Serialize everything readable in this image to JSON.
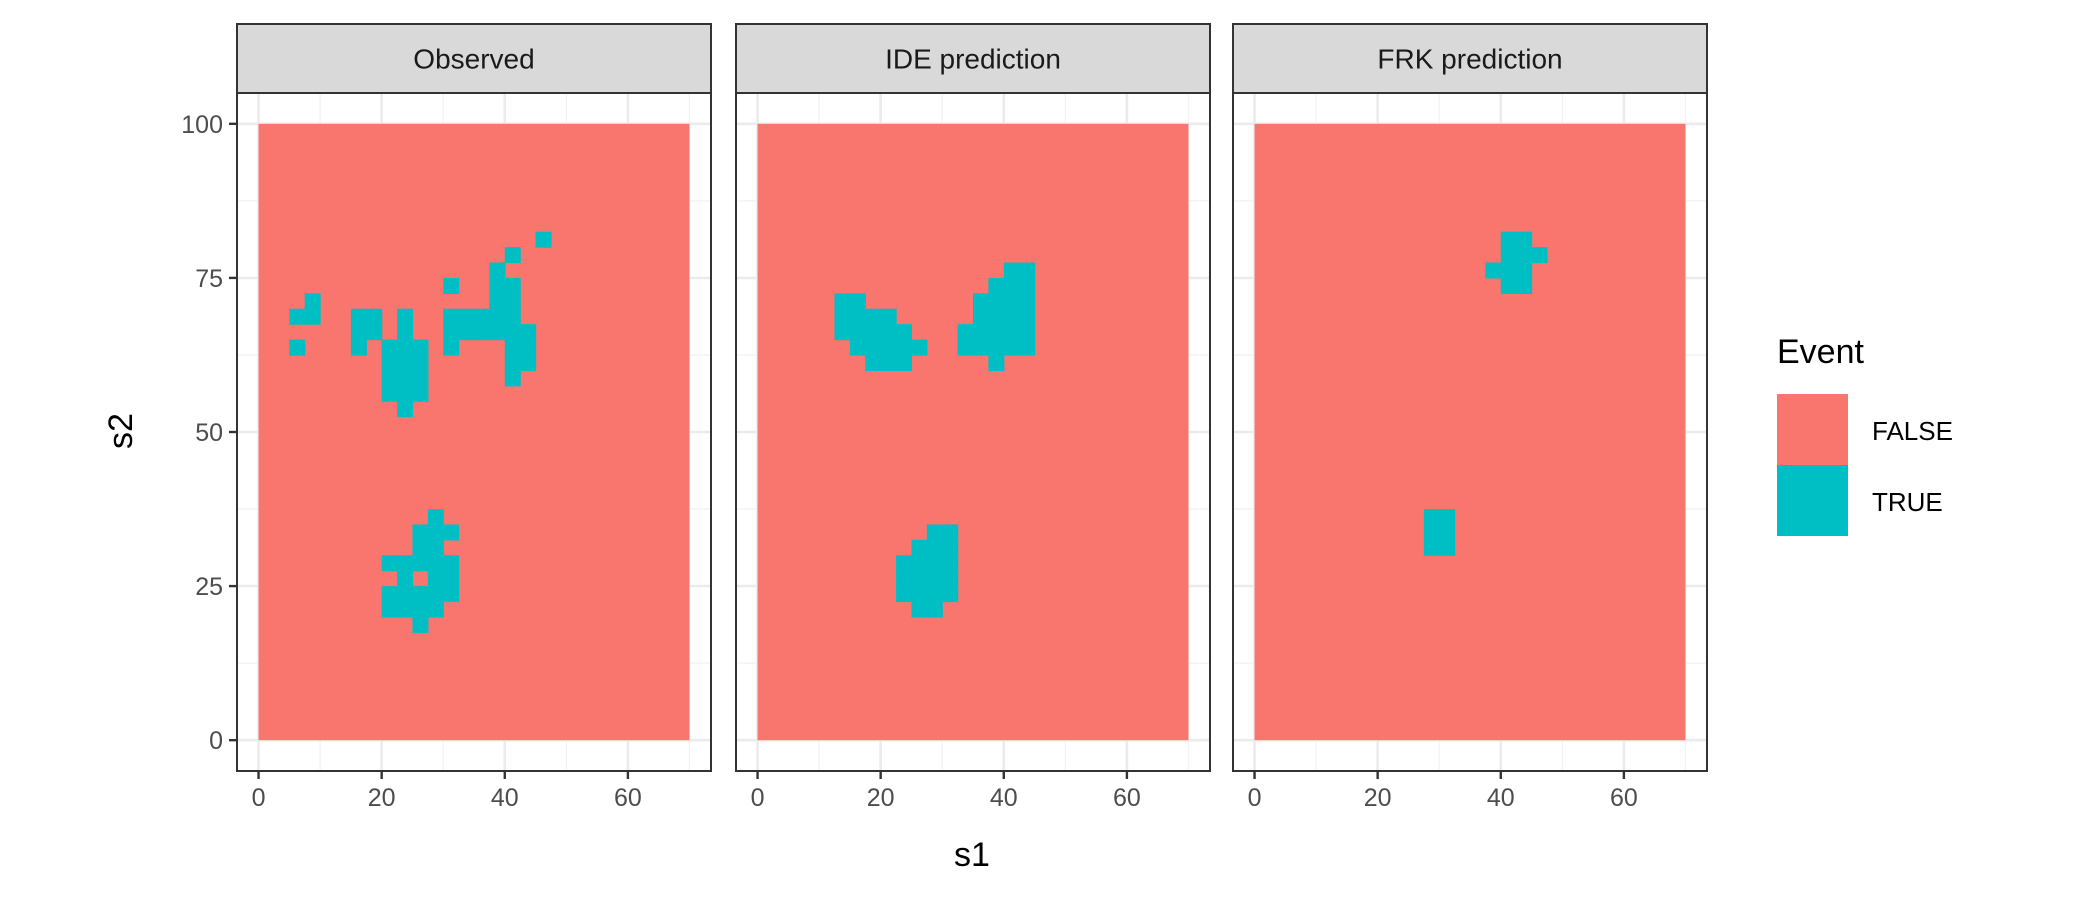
{
  "chart_data": {
    "type": "heatmap",
    "xlabel": "s1",
    "ylabel": "s2",
    "xlim": [
      0,
      70
    ],
    "ylim": [
      0,
      100
    ],
    "cell_size": 2.5,
    "xticks": [
      "0",
      "20",
      "40",
      "60"
    ],
    "yticks": [
      "0",
      "25",
      "50",
      "75",
      "100"
    ],
    "grid": true,
    "legend": {
      "title": "Event",
      "position": "right",
      "entries": [
        {
          "label": "FALSE",
          "color": "#F8766D"
        },
        {
          "label": "TRUE",
          "color": "#00BFC4"
        }
      ]
    },
    "default_value": "FALSE",
    "panels": [
      {
        "title": "Observed",
        "true_cells": [
          {
            "s2": 81.25,
            "s1": [
              46.25
            ]
          },
          {
            "s2": 78.75,
            "s1": [
              41.25
            ]
          },
          {
            "s2": 76.25,
            "s1": [
              38.75
            ]
          },
          {
            "s2": 73.75,
            "s1": [
              31.25,
              38.75,
              41.25
            ]
          },
          {
            "s2": 71.25,
            "s1": [
              8.75,
              38.75,
              41.25
            ]
          },
          {
            "s2": 68.75,
            "s1": [
              6.25,
              8.75,
              16.25,
              18.75,
              23.75,
              31.25,
              33.75,
              36.25,
              38.75,
              41.25
            ]
          },
          {
            "s2": 66.25,
            "s1": [
              16.25,
              18.75,
              23.75,
              31.25,
              33.75,
              36.25,
              38.75,
              41.25,
              43.75
            ]
          },
          {
            "s2": 63.75,
            "s1": [
              6.25,
              16.25,
              21.25,
              23.75,
              26.25,
              31.25,
              41.25,
              43.75
            ]
          },
          {
            "s2": 61.25,
            "s1": [
              21.25,
              23.75,
              26.25,
              41.25,
              43.75
            ]
          },
          {
            "s2": 58.75,
            "s1": [
              21.25,
              23.75,
              26.25,
              41.25
            ]
          },
          {
            "s2": 56.25,
            "s1": [
              21.25,
              23.75,
              26.25
            ]
          },
          {
            "s2": 53.75,
            "s1": [
              23.75
            ]
          },
          {
            "s2": 36.25,
            "s1": [
              28.75
            ]
          },
          {
            "s2": 33.75,
            "s1": [
              26.25,
              28.75,
              31.25
            ]
          },
          {
            "s2": 31.25,
            "s1": [
              26.25,
              28.75
            ]
          },
          {
            "s2": 28.75,
            "s1": [
              21.25,
              23.75,
              26.25,
              28.75,
              31.25
            ]
          },
          {
            "s2": 26.25,
            "s1": [
              23.75,
              28.75,
              31.25
            ]
          },
          {
            "s2": 23.75,
            "s1": [
              21.25,
              23.75,
              26.25,
              28.75,
              31.25
            ]
          },
          {
            "s2": 21.25,
            "s1": [
              21.25,
              23.75,
              26.25,
              28.75
            ]
          },
          {
            "s2": 18.75,
            "s1": [
              26.25
            ]
          }
        ]
      },
      {
        "title": "IDE prediction",
        "true_cells": [
          {
            "s2": 76.25,
            "s1": [
              41.25,
              43.75
            ]
          },
          {
            "s2": 73.75,
            "s1": [
              38.75,
              41.25,
              43.75
            ]
          },
          {
            "s2": 71.25,
            "s1": [
              13.75,
              16.25,
              36.25,
              38.75,
              41.25,
              43.75
            ]
          },
          {
            "s2": 68.75,
            "s1": [
              13.75,
              16.25,
              18.75,
              21.25,
              36.25,
              38.75,
              41.25,
              43.75
            ]
          },
          {
            "s2": 66.25,
            "s1": [
              13.75,
              16.25,
              18.75,
              21.25,
              23.75,
              33.75,
              36.25,
              38.75,
              41.25,
              43.75
            ]
          },
          {
            "s2": 63.75,
            "s1": [
              16.25,
              18.75,
              21.25,
              23.75,
              26.25,
              33.75,
              36.25,
              38.75,
              41.25,
              43.75
            ]
          },
          {
            "s2": 61.25,
            "s1": [
              18.75,
              21.25,
              23.75,
              38.75
            ]
          },
          {
            "s2": 33.75,
            "s1": [
              28.75,
              31.25
            ]
          },
          {
            "s2": 31.25,
            "s1": [
              26.25,
              28.75,
              31.25
            ]
          },
          {
            "s2": 28.75,
            "s1": [
              23.75,
              26.25,
              28.75,
              31.25
            ]
          },
          {
            "s2": 26.25,
            "s1": [
              23.75,
              26.25,
              28.75,
              31.25
            ]
          },
          {
            "s2": 23.75,
            "s1": [
              23.75,
              26.25,
              28.75,
              31.25
            ]
          },
          {
            "s2": 21.25,
            "s1": [
              26.25,
              28.75
            ]
          }
        ]
      },
      {
        "title": "FRK prediction",
        "true_cells": [
          {
            "s2": 81.25,
            "s1": [
              41.25,
              43.75
            ]
          },
          {
            "s2": 78.75,
            "s1": [
              41.25,
              43.75,
              46.25
            ]
          },
          {
            "s2": 76.25,
            "s1": [
              38.75,
              41.25,
              43.75
            ]
          },
          {
            "s2": 73.75,
            "s1": [
              41.25,
              43.75
            ]
          },
          {
            "s2": 36.25,
            "s1": [
              28.75,
              31.25
            ]
          },
          {
            "s2": 33.75,
            "s1": [
              28.75,
              31.25
            ]
          },
          {
            "s2": 31.25,
            "s1": [
              28.75,
              31.25
            ]
          }
        ]
      }
    ]
  }
}
